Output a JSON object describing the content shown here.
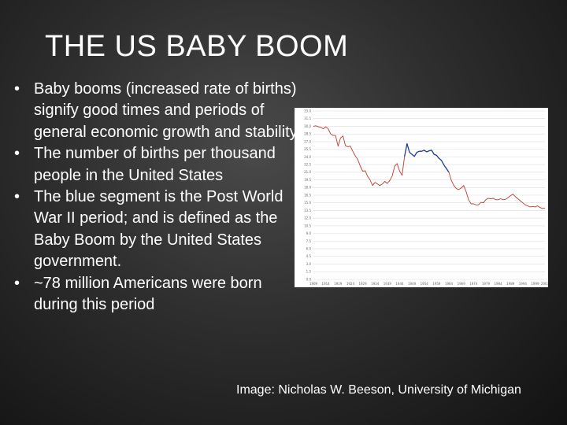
{
  "slide": {
    "title": "THE US BABY BOOM",
    "bullets": [
      "Baby booms (increased rate of births) signify good times and periods of general economic growth and stability",
      "The number of births per thousand people in the United States",
      "The blue segment is the Post World War II period; and is defined as the Baby Boom by the United States government.",
      "~78 million Americans were born during this period"
    ],
    "bullet_glyph": "•",
    "credit": "Image: Nicholas W. Beeson, University of Michigan"
  },
  "colors": {
    "pre_post_series": "#c0392b",
    "boom_series": "#1f3a93",
    "grid": "#dcdcdc"
  },
  "chart_data": {
    "type": "line",
    "title": "",
    "xlabel": "",
    "ylabel": "",
    "ylim": [
      0,
      33
    ],
    "xlim": [
      1909,
      2003
    ],
    "grid": true,
    "legend": "none",
    "x_ticks": [
      "1909",
      "1914",
      "1919",
      "1924",
      "1929",
      "1934",
      "1939",
      "1944",
      "1949",
      "1954",
      "1959",
      "1964",
      "1969",
      "1974",
      "1979",
      "1984",
      "1989",
      "1994",
      "1999",
      "2003"
    ],
    "series": [
      {
        "segment": "before",
        "color_key": "pre_post_series",
        "x": [
          1909,
          1910,
          1911,
          1912,
          1913,
          1914,
          1915,
          1916,
          1917,
          1918,
          1919,
          1920,
          1921,
          1922,
          1923,
          1924,
          1925,
          1926,
          1927,
          1928,
          1929,
          1930,
          1931,
          1932,
          1933,
          1934,
          1935,
          1936,
          1937,
          1938,
          1939,
          1940,
          1941,
          1942,
          1943,
          1944,
          1945,
          1946
        ],
        "y": [
          30.0,
          30.1,
          29.9,
          29.8,
          29.5,
          29.9,
          29.5,
          28.5,
          28.2,
          28.2,
          26.1,
          27.7,
          28.1,
          26.2,
          26.0,
          26.1,
          25.1,
          24.2,
          23.5,
          22.2,
          21.2,
          21.3,
          20.2,
          19.5,
          18.4,
          19.0,
          18.7,
          18.4,
          18.7,
          19.2,
          18.8,
          19.4,
          20.3,
          22.2,
          22.7,
          21.2,
          20.4,
          24.1
        ]
      },
      {
        "segment": "boom",
        "color_key": "boom_series",
        "x": [
          1946,
          1947,
          1948,
          1949,
          1950,
          1951,
          1952,
          1953,
          1954,
          1955,
          1956,
          1957,
          1958,
          1959,
          1960,
          1961,
          1962,
          1963,
          1964
        ],
        "y": [
          24.1,
          26.6,
          24.9,
          24.5,
          24.1,
          24.9,
          25.1,
          25.1,
          25.3,
          25.0,
          25.2,
          25.3,
          24.5,
          24.3,
          23.7,
          23.3,
          22.4,
          21.7,
          21.0
        ]
      },
      {
        "segment": "after",
        "color_key": "pre_post_series",
        "x": [
          1964,
          1965,
          1966,
          1967,
          1968,
          1969,
          1970,
          1971,
          1972,
          1973,
          1974,
          1975,
          1976,
          1977,
          1978,
          1979,
          1980,
          1981,
          1982,
          1983,
          1984,
          1985,
          1986,
          1987,
          1988,
          1989,
          1990,
          1991,
          1992,
          1993,
          1994,
          1995,
          1996,
          1997,
          1998,
          1999,
          2000,
          2001,
          2002,
          2003
        ],
        "y": [
          21.0,
          19.4,
          18.4,
          17.8,
          17.6,
          17.9,
          18.4,
          17.2,
          15.6,
          14.8,
          14.8,
          14.6,
          14.6,
          15.1,
          15.0,
          15.6,
          15.9,
          15.8,
          15.9,
          15.6,
          15.6,
          15.8,
          15.6,
          15.7,
          16.0,
          16.4,
          16.7,
          16.2,
          15.8,
          15.4,
          15.0,
          14.6,
          14.4,
          14.2,
          14.3,
          14.2,
          14.4,
          14.1,
          13.9,
          14.0
        ]
      }
    ]
  }
}
